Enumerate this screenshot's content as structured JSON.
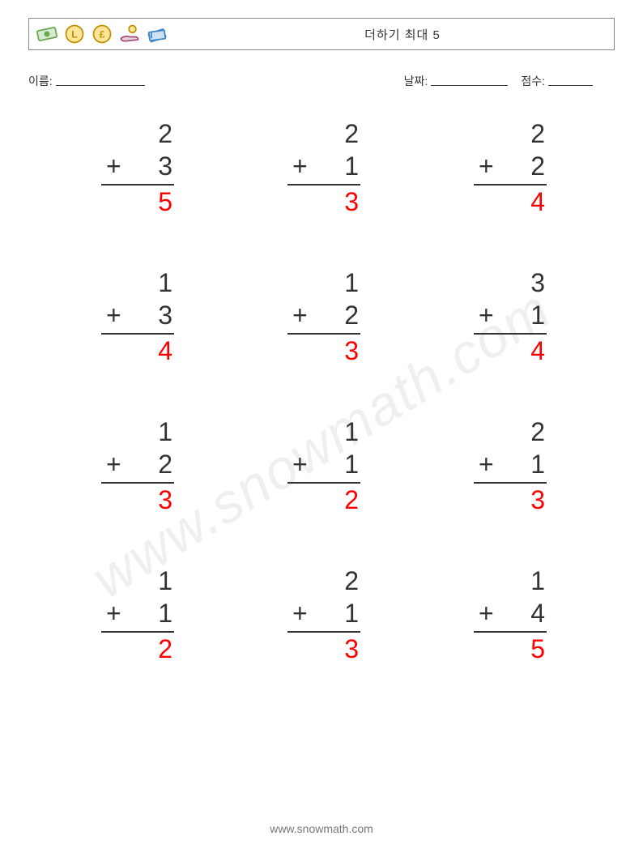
{
  "header": {
    "title": "더하기 최대 5",
    "title_color": "#333333",
    "border_color": "#888888"
  },
  "fields": {
    "name_label": "이름:",
    "date_label": "날짜:",
    "score_label": "점수:",
    "name_blank_width": 110,
    "date_blank_width": 95,
    "score_blank_width": 55,
    "gap_before_date": 320,
    "gap_before_score": 16
  },
  "worksheet": {
    "type": "math-problems-grid",
    "columns": 3,
    "rows": 4,
    "operator": "+",
    "number_color": "#333333",
    "answer_color": "#ff0000",
    "rule_color": "#333333",
    "font_size": 32,
    "problems": [
      {
        "a": 2,
        "b": 3,
        "ans": 5
      },
      {
        "a": 2,
        "b": 1,
        "ans": 3
      },
      {
        "a": 2,
        "b": 2,
        "ans": 4
      },
      {
        "a": 1,
        "b": 3,
        "ans": 4
      },
      {
        "a": 1,
        "b": 2,
        "ans": 3
      },
      {
        "a": 3,
        "b": 1,
        "ans": 4
      },
      {
        "a": 1,
        "b": 2,
        "ans": 3
      },
      {
        "a": 1,
        "b": 1,
        "ans": 2
      },
      {
        "a": 2,
        "b": 1,
        "ans": 3
      },
      {
        "a": 1,
        "b": 1,
        "ans": 2
      },
      {
        "a": 2,
        "b": 1,
        "ans": 3
      },
      {
        "a": 1,
        "b": 4,
        "ans": 5
      }
    ]
  },
  "watermark": {
    "text": "www.snowmath.com",
    "color": "rgba(120,120,120,0.12)"
  },
  "footer": {
    "text": "www.snowmath.com",
    "color": "#777777"
  },
  "icons": [
    {
      "name": "money-bill",
      "stroke": "#6aa84f",
      "fill": "#d9ead3"
    },
    {
      "name": "litecoin-coin",
      "stroke": "#bf9000",
      "fill": "#ffe599"
    },
    {
      "name": "pound-coin",
      "stroke": "#bf9000",
      "fill": "#ffe599"
    },
    {
      "name": "hand-coin",
      "stroke": "#a64d79",
      "fill": "#ead1dc"
    },
    {
      "name": "cash-stack",
      "stroke": "#3d85c6",
      "fill": "#cfe2f3"
    }
  ]
}
